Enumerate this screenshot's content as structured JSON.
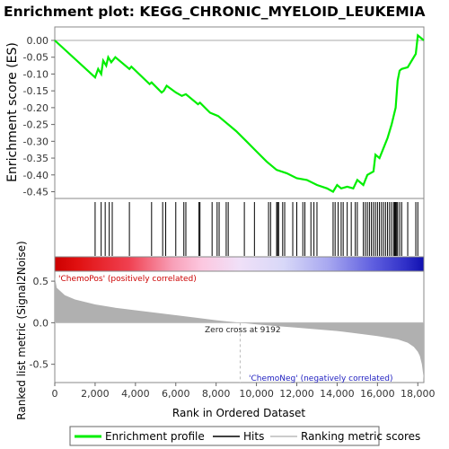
{
  "chart_data": {
    "type": "line",
    "title": "Enrichment plot: KEGG_CHRONIC_MYELOID_LEUKEMIA",
    "es_panel": {
      "ylabel": "Enrichment score (ES)",
      "yticks": [
        "0.00",
        "-0.05",
        "-0.10",
        "-0.15",
        "-0.20",
        "-0.25",
        "-0.30",
        "-0.35",
        "-0.40",
        "-0.45"
      ],
      "ylim": [
        -0.47,
        0.04
      ],
      "series": [
        {
          "name": "Enrichment profile",
          "color": "#00ee00",
          "x": [
            0,
            2000,
            2150,
            2300,
            2400,
            2550,
            2650,
            2800,
            3000,
            3700,
            3800,
            4700,
            4800,
            5300,
            5400,
            5550,
            6000,
            6300,
            6500,
            7100,
            7200,
            7700,
            8100,
            8500,
            9000,
            9500,
            10000,
            10500,
            11000,
            11500,
            12000,
            12500,
            13000,
            13500,
            13800,
            14000,
            14200,
            14500,
            14800,
            15000,
            15300,
            15500,
            15800,
            15900,
            16100,
            16300,
            16500,
            16700,
            16900,
            17000,
            17100,
            17200,
            17500,
            17700,
            17900,
            18000,
            18300
          ],
          "y": [
            0.0,
            -0.11,
            -0.085,
            -0.1,
            -0.06,
            -0.075,
            -0.05,
            -0.065,
            -0.05,
            -0.085,
            -0.078,
            -0.13,
            -0.125,
            -0.155,
            -0.15,
            -0.135,
            -0.155,
            -0.165,
            -0.16,
            -0.19,
            -0.185,
            -0.215,
            -0.225,
            -0.245,
            -0.27,
            -0.3,
            -0.33,
            -0.36,
            -0.385,
            -0.395,
            -0.41,
            -0.415,
            -0.43,
            -0.44,
            -0.45,
            -0.43,
            -0.44,
            -0.435,
            -0.44,
            -0.415,
            -0.43,
            -0.4,
            -0.39,
            -0.34,
            -0.35,
            -0.32,
            -0.29,
            -0.25,
            -0.2,
            -0.12,
            -0.09,
            -0.085,
            -0.08,
            -0.06,
            -0.04,
            0.015,
            0.0
          ]
        }
      ]
    },
    "hits_panel": {
      "hits": [
        2000,
        2300,
        2500,
        2700,
        2850,
        3700,
        4800,
        5350,
        5500,
        6000,
        6400,
        6500,
        7150,
        7200,
        7800,
        8050,
        8150,
        8500,
        8600,
        9400,
        9900,
        10600,
        10700,
        11000,
        11050,
        11100,
        11300,
        11400,
        11800,
        12000,
        12300,
        12400,
        12700,
        12850,
        13000,
        13800,
        13900,
        14050,
        14200,
        14300,
        14500,
        14700,
        14900,
        15000,
        15300,
        15400,
        15500,
        15600,
        15700,
        15800,
        15900,
        16000,
        16100,
        16200,
        16300,
        16400,
        16500,
        16600,
        16700,
        16800,
        16850,
        16900,
        16950,
        17000,
        17100,
        17200,
        17500,
        17900,
        18000
      ]
    },
    "metric_panel": {
      "ylabel": "Ranked list metric (Signal2Noise)",
      "yticks": [
        "0.5",
        "0.0",
        "-0.5"
      ],
      "ylim": [
        -0.72,
        0.62
      ],
      "zero_cross_label": "Zero cross at 9192",
      "zero_cross": 9192,
      "pos_label": "'ChemoPos' (positively correlated)",
      "neg_label": "'ChemoNeg' (negatively correlated)",
      "profile_x": [
        0,
        100,
        500,
        1000,
        2000,
        3000,
        4000,
        5000,
        6000,
        7000,
        8000,
        9192,
        10000,
        11000,
        12000,
        13000,
        14000,
        15000,
        16000,
        17000,
        17500,
        17800,
        18000,
        18100,
        18200,
        18300
      ],
      "profile_y": [
        0.55,
        0.42,
        0.33,
        0.28,
        0.22,
        0.18,
        0.15,
        0.12,
        0.09,
        0.06,
        0.03,
        0.0,
        -0.02,
        -0.04,
        -0.06,
        -0.08,
        -0.1,
        -0.13,
        -0.16,
        -0.2,
        -0.24,
        -0.29,
        -0.35,
        -0.4,
        -0.5,
        -0.68
      ]
    },
    "xaxis": {
      "label": "Rank in Ordered Dataset",
      "xlim": [
        0,
        18300
      ],
      "ticks": [
        0,
        2000,
        4000,
        6000,
        8000,
        10000,
        12000,
        14000,
        16000,
        18000
      ],
      "tick_labels": [
        "0",
        "2,000",
        "4,000",
        "6,000",
        "8,000",
        "10,000",
        "12,000",
        "14,000",
        "16,000",
        "18,000"
      ]
    },
    "legend": {
      "placement": "bottom",
      "entries": [
        {
          "label": "Enrichment profile",
          "color": "#00ee00"
        },
        {
          "label": "Hits",
          "color": "#000000"
        },
        {
          "label": "Ranking metric scores",
          "color": "#cccccc"
        }
      ]
    }
  }
}
